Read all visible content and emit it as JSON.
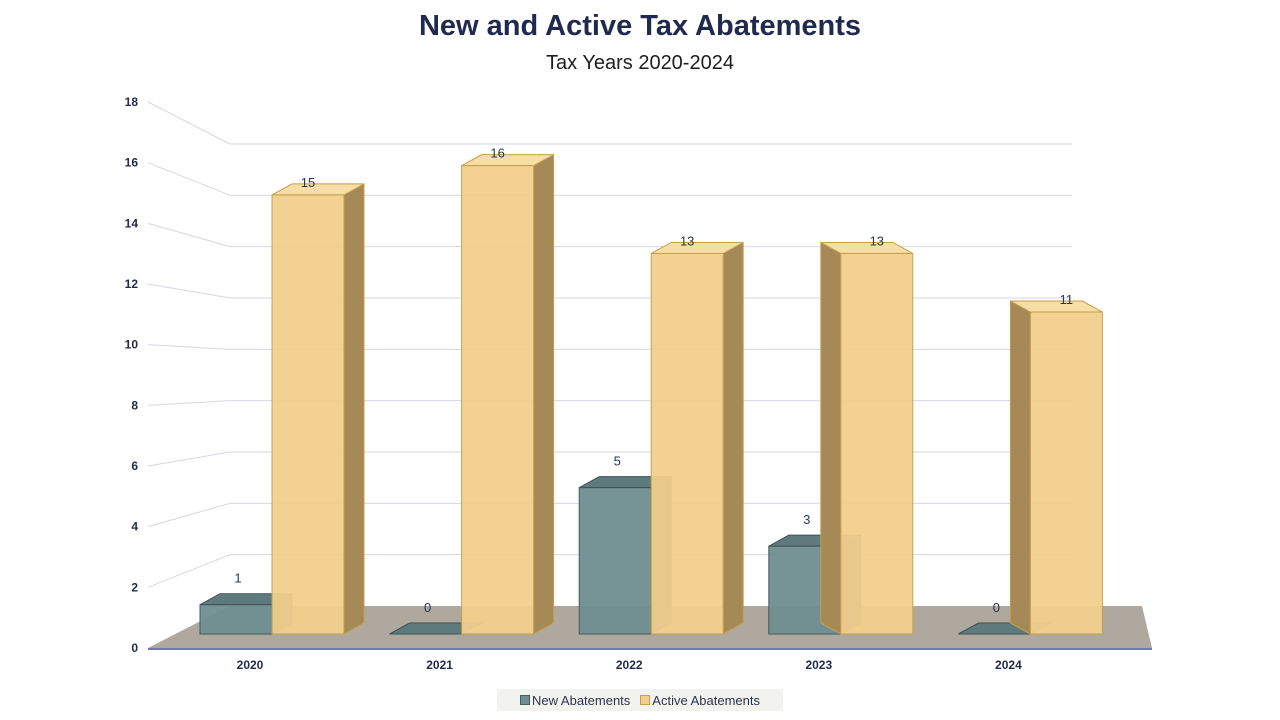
{
  "chart_data": {
    "type": "bar",
    "title": "New and Active Tax Abatements",
    "subtitle": "Tax Years 2020-2024",
    "categories": [
      "2020",
      "2021",
      "2022",
      "2023",
      "2024"
    ],
    "series": [
      {
        "name": "New Abatements",
        "values": [
          1,
          0,
          5,
          3,
          0
        ],
        "color": "#6f8e91"
      },
      {
        "name": "Active Abatements",
        "values": [
          15,
          16,
          13,
          13,
          11
        ],
        "color": "#f2cf8d"
      }
    ],
    "y_ticks": [
      "0",
      "2",
      "4",
      "6",
      "8",
      "10",
      "12",
      "14",
      "16",
      "18"
    ],
    "ylim": [
      0,
      18
    ],
    "grid": true,
    "legend": "bottom",
    "style": "3d"
  }
}
